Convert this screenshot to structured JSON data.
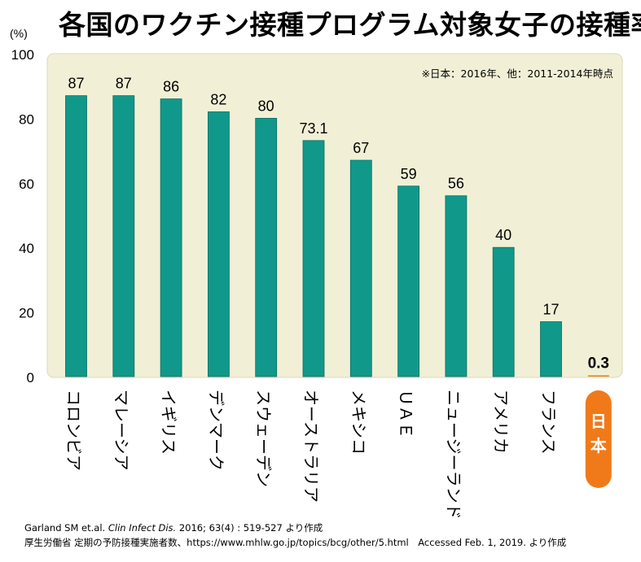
{
  "title": "各国のワクチン接種プログラム対象女子の接種率",
  "note": "※日本：2016年、他：2011-2014年時点",
  "colors": {
    "bar": "#10988a",
    "bar_edge": "#0a6f64",
    "highlight": "#f07a1a",
    "highlight_text": "#ffffff",
    "plot_background": "#f1f0d6",
    "plot_frame": "#dcdab4"
  },
  "footer": {
    "citation_authors": "Garland SM et.al. ",
    "citation_journal": "Clin Infect Dis.",
    "citation_rest": " 2016; 63(4) : 519-527 より作成",
    "source": "厚生労働省 定期の予防接種実施者数、https://www.mhlw.go.jp/topics/bcg/other/5.html　Accessed Feb. 1, 2019. より作成"
  },
  "chart_data": {
    "type": "bar",
    "title": "各国のワクチン接種プログラム対象女子の接種率",
    "ylabel": "(%)",
    "ylim": [
      0,
      100
    ],
    "yticks": [
      0,
      20,
      40,
      60,
      80,
      100
    ],
    "grid": false,
    "categories": [
      "コロンビア",
      "マレーシア",
      "イギリス",
      "デンマーク",
      "スウェーデン",
      "オーストラリア",
      "メキシコ",
      "ＵＡＥ",
      "ニュージーランド",
      "アメリカ",
      "フランス",
      "日本"
    ],
    "values": [
      87,
      87,
      86,
      82,
      80,
      73.1,
      67,
      59,
      56,
      40,
      17,
      0.3
    ],
    "value_labels": [
      "87",
      "87",
      "86",
      "82",
      "80",
      "73.1",
      "67",
      "59",
      "56",
      "40",
      "17",
      "0.3"
    ],
    "highlighted_category": "日本"
  }
}
